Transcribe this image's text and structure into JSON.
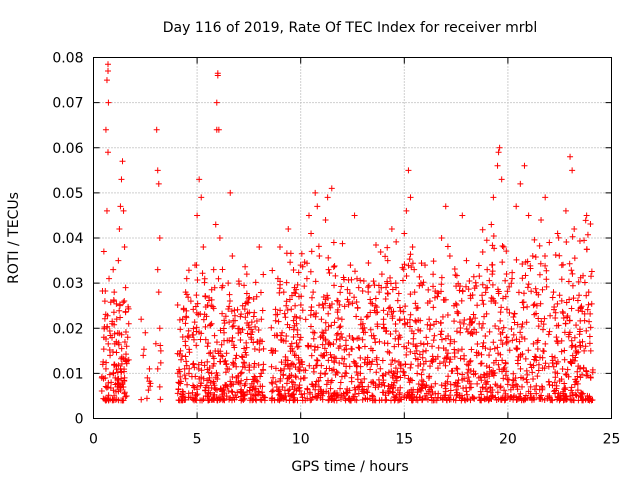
{
  "chart_data": {
    "type": "scatter",
    "title": "Day 116 of 2019, Rate Of TEC Index for receiver mrbl",
    "xlabel": "GPS time / hours",
    "ylabel": "ROTI / TECUs",
    "xlim": [
      0,
      25
    ],
    "ylim": [
      0,
      0.08
    ],
    "xticks": [
      0,
      5,
      10,
      15,
      20,
      25
    ],
    "yticks": [
      0,
      0.01,
      0.02,
      0.03,
      0.04,
      0.05,
      0.06,
      0.07,
      0.08
    ],
    "xtick_labels": [
      "0",
      "5",
      "10",
      "15",
      "20",
      "25"
    ],
    "ytick_labels": [
      "0",
      "0.01",
      "0.02",
      "0.03",
      "0.04",
      "0.05",
      "0.06",
      "0.07",
      "0.08"
    ],
    "grid": true,
    "marker": "+",
    "marker_color": "#ff0000",
    "series": [
      {
        "name": "ROTI",
        "points": [
          [
            0.4,
            0.009
          ],
          [
            0.45,
            0.012
          ],
          [
            0.5,
            0.018
          ],
          [
            0.5,
            0.037
          ],
          [
            0.55,
            0.026
          ],
          [
            0.6,
            0.011
          ],
          [
            0.6,
            0.064
          ],
          [
            0.65,
            0.075
          ],
          [
            0.7,
            0.077
          ],
          [
            0.7,
            0.0785
          ],
          [
            0.72,
            0.07
          ],
          [
            0.7,
            0.059
          ],
          [
            0.65,
            0.046
          ],
          [
            0.75,
            0.031
          ],
          [
            0.8,
            0.014
          ],
          [
            0.85,
            0.008
          ],
          [
            0.9,
            0.021
          ],
          [
            0.95,
            0.033
          ],
          [
            1.0,
            0.012
          ],
          [
            1.0,
            0.028
          ],
          [
            1.05,
            0.009
          ],
          [
            1.1,
            0.017
          ],
          [
            1.15,
            0.007
          ],
          [
            1.2,
            0.035
          ],
          [
            1.25,
            0.042
          ],
          [
            1.3,
            0.047
          ],
          [
            1.35,
            0.053
          ],
          [
            1.4,
            0.057
          ],
          [
            1.45,
            0.046
          ],
          [
            1.5,
            0.038
          ],
          [
            1.55,
            0.029
          ],
          [
            1.6,
            0.016
          ],
          [
            1.6,
            0.005
          ],
          [
            1.4,
            0.004
          ],
          [
            1.3,
            0.011
          ],
          [
            1.5,
            0.009
          ],
          [
            1.2,
            0.006
          ],
          [
            1.7,
            0.013
          ],
          [
            1.7,
            0.021
          ],
          [
            2.3,
            0.022
          ],
          [
            2.4,
            0.014
          ],
          [
            2.5,
            0.019
          ],
          [
            2.6,
            0.009
          ],
          [
            2.7,
            0.011
          ],
          [
            3.05,
            0.064
          ],
          [
            3.1,
            0.055
          ],
          [
            3.15,
            0.052
          ],
          [
            3.2,
            0.04
          ],
          [
            3.1,
            0.033
          ],
          [
            3.15,
            0.028
          ],
          [
            3.2,
            0.02
          ],
          [
            3.25,
            0.015
          ],
          [
            3.1,
            0.011
          ],
          [
            3.2,
            0.007
          ],
          [
            4.1,
            0.008
          ],
          [
            4.2,
            0.015
          ],
          [
            4.3,
            0.022
          ],
          [
            4.4,
            0.011
          ],
          [
            4.5,
            0.031
          ],
          [
            4.6,
            0.018
          ],
          [
            4.7,
            0.026
          ],
          [
            4.8,
            0.012
          ],
          [
            4.9,
            0.034
          ],
          [
            5.0,
            0.045
          ],
          [
            5.1,
            0.053
          ],
          [
            5.2,
            0.049
          ],
          [
            5.3,
            0.038
          ],
          [
            5.4,
            0.027
          ],
          [
            5.5,
            0.016
          ],
          [
            5.6,
            0.009
          ],
          [
            5.7,
            0.021
          ],
          [
            5.8,
            0.033
          ],
          [
            5.9,
            0.043
          ],
          [
            5.95,
            0.064
          ],
          [
            5.95,
            0.07
          ],
          [
            6.0,
            0.076
          ],
          [
            6.0,
            0.0765
          ],
          [
            6.05,
            0.064
          ],
          [
            6.1,
            0.04
          ],
          [
            6.2,
            0.029
          ],
          [
            6.3,
            0.019
          ],
          [
            6.4,
            0.012
          ],
          [
            6.5,
            0.03
          ],
          [
            6.6,
            0.05
          ],
          [
            6.7,
            0.036
          ],
          [
            6.8,
            0.024
          ],
          [
            6.9,
            0.014
          ],
          [
            7.0,
            0.008
          ],
          [
            7.2,
            0.025
          ],
          [
            7.4,
            0.032
          ],
          [
            7.6,
            0.018
          ],
          [
            7.8,
            0.009
          ],
          [
            8.0,
            0.038
          ],
          [
            8.1,
            0.022
          ],
          [
            8.2,
            0.012
          ],
          [
            4.3,
            0.006
          ],
          [
            5.0,
            0.007
          ],
          [
            5.5,
            0.005
          ],
          [
            6.2,
            0.006
          ],
          [
            7.1,
            0.006
          ],
          [
            7.7,
            0.005
          ],
          [
            8.6,
            0.008
          ],
          [
            8.7,
            0.015
          ],
          [
            8.8,
            0.023
          ],
          [
            8.9,
            0.031
          ],
          [
            9.0,
            0.038
          ],
          [
            9.1,
            0.019
          ],
          [
            9.2,
            0.011
          ],
          [
            9.3,
            0.025
          ],
          [
            9.4,
            0.042
          ],
          [
            9.5,
            0.016
          ],
          [
            9.6,
            0.007
          ],
          [
            9.7,
            0.029
          ],
          [
            9.8,
            0.021
          ],
          [
            9.9,
            0.013
          ],
          [
            10.0,
            0.034
          ],
          [
            10.1,
            0.024
          ],
          [
            10.2,
            0.009
          ],
          [
            10.3,
            0.031
          ],
          [
            10.4,
            0.045
          ],
          [
            10.5,
            0.041
          ],
          [
            10.6,
            0.028
          ],
          [
            10.7,
            0.05
          ],
          [
            10.8,
            0.047
          ],
          [
            10.9,
            0.036
          ],
          [
            11.0,
            0.022
          ],
          [
            11.1,
            0.014
          ],
          [
            11.2,
            0.044
          ],
          [
            11.3,
            0.049
          ],
          [
            11.5,
            0.051
          ],
          [
            11.6,
            0.039
          ],
          [
            11.8,
            0.026
          ],
          [
            12.0,
            0.018
          ],
          [
            12.2,
            0.01
          ],
          [
            12.4,
            0.034
          ],
          [
            12.6,
            0.045
          ],
          [
            12.8,
            0.029
          ],
          [
            13.0,
            0.021
          ],
          [
            13.2,
            0.012
          ],
          [
            13.4,
            0.008
          ],
          [
            13.6,
            0.025
          ],
          [
            13.8,
            0.017
          ],
          [
            9.2,
            0.005
          ],
          [
            10.1,
            0.004
          ],
          [
            11.0,
            0.006
          ],
          [
            12.1,
            0.005
          ],
          [
            13.0,
            0.006
          ],
          [
            14.0,
            0.022
          ],
          [
            14.2,
            0.035
          ],
          [
            14.4,
            0.042
          ],
          [
            14.6,
            0.029
          ],
          [
            14.8,
            0.018
          ],
          [
            15.0,
            0.041
          ],
          [
            15.1,
            0.046
          ],
          [
            15.2,
            0.055
          ],
          [
            15.3,
            0.049
          ],
          [
            15.4,
            0.038
          ],
          [
            15.5,
            0.028
          ],
          [
            15.6,
            0.015
          ],
          [
            15.8,
            0.03
          ],
          [
            16.0,
            0.034
          ],
          [
            16.2,
            0.022
          ],
          [
            16.4,
            0.013
          ],
          [
            16.6,
            0.027
          ],
          [
            16.8,
            0.04
          ],
          [
            17.0,
            0.047
          ],
          [
            17.2,
            0.036
          ],
          [
            17.4,
            0.025
          ],
          [
            17.6,
            0.015
          ],
          [
            17.8,
            0.045
          ],
          [
            18.0,
            0.035
          ],
          [
            18.2,
            0.022
          ],
          [
            18.5,
            0.014
          ],
          [
            14.3,
            0.006
          ],
          [
            15.0,
            0.005
          ],
          [
            16.0,
            0.005
          ],
          [
            17.0,
            0.006
          ],
          [
            18.0,
            0.006
          ],
          [
            18.6,
            0.009
          ],
          [
            18.8,
            0.021
          ],
          [
            19.0,
            0.033
          ],
          [
            19.2,
            0.043
          ],
          [
            19.3,
            0.049
          ],
          [
            19.5,
            0.056
          ],
          [
            19.55,
            0.059
          ],
          [
            19.6,
            0.06
          ],
          [
            19.7,
            0.053
          ],
          [
            19.8,
            0.038
          ],
          [
            19.9,
            0.027
          ],
          [
            20.0,
            0.017
          ],
          [
            20.2,
            0.031
          ],
          [
            20.4,
            0.047
          ],
          [
            20.6,
            0.052
          ],
          [
            20.8,
            0.056
          ],
          [
            21.0,
            0.045
          ],
          [
            21.2,
            0.036
          ],
          [
            21.4,
            0.025
          ],
          [
            21.6,
            0.044
          ],
          [
            21.8,
            0.049
          ],
          [
            22.0,
            0.039
          ],
          [
            22.2,
            0.028
          ],
          [
            22.4,
            0.041
          ],
          [
            22.6,
            0.034
          ],
          [
            22.8,
            0.046
          ],
          [
            23.0,
            0.058
          ],
          [
            23.1,
            0.055
          ],
          [
            23.2,
            0.042
          ],
          [
            23.4,
            0.024
          ],
          [
            23.6,
            0.017
          ],
          [
            23.8,
            0.045
          ],
          [
            23.9,
            0.028
          ],
          [
            24.0,
            0.015
          ],
          [
            19.0,
            0.006
          ],
          [
            20.0,
            0.005
          ],
          [
            21.0,
            0.006
          ],
          [
            22.0,
            0.005
          ],
          [
            23.0,
            0.005
          ],
          [
            24.0,
            0.009
          ]
        ]
      }
    ]
  }
}
